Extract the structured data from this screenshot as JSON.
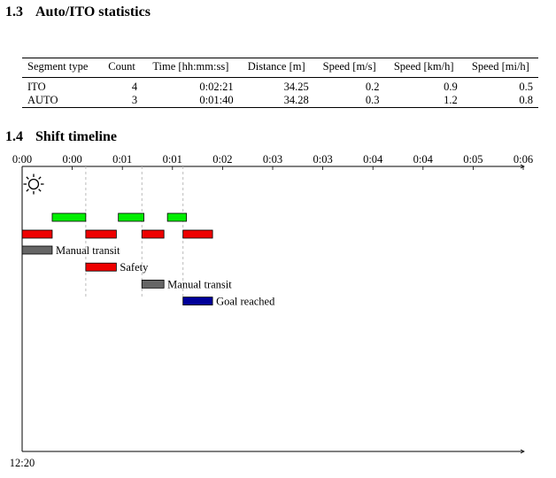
{
  "sections": {
    "stats": {
      "number": "1.3",
      "title": "Auto/ITO statistics"
    },
    "timeline": {
      "number": "1.4",
      "title": "Shift timeline"
    }
  },
  "stats_table": {
    "headers": [
      "Segment type",
      "Count",
      "Time [hh:mm:ss]",
      "Distance [m]",
      "Speed [m/s]",
      "Speed [km/h]",
      "Speed [mi/h]"
    ],
    "rows": [
      [
        "ITO",
        "4",
        "0:02:21",
        "34.25",
        "0.2",
        "0.9",
        "0.5"
      ],
      [
        "AUTO",
        "3",
        "0:01:40",
        "34.28",
        "0.3",
        "1.2",
        "0.8"
      ]
    ]
  },
  "timeline": {
    "icon": "sun-icon",
    "time_ticks": [
      "0:00",
      "0:00",
      "0:01",
      "0:01",
      "0:02",
      "0:03",
      "0:03",
      "0:04",
      "0:04",
      "0:05",
      "0:06"
    ],
    "start_label": "12:20",
    "colors": {
      "auto": "#00ee00",
      "ito": "#ee0000",
      "manual_transit": "#666666",
      "safety": "#ee0000",
      "goal_reached": "#000099",
      "divider": "#bbbbbb"
    },
    "auto_segments": [
      [
        0.6,
        1.27
      ],
      [
        1.92,
        2.43
      ],
      [
        2.9,
        3.28
      ]
    ],
    "ito_segments": [
      [
        0,
        0.6
      ],
      [
        1.27,
        1.88
      ],
      [
        2.39,
        2.83
      ],
      [
        3.21,
        3.8
      ]
    ],
    "dividers": [
      1.27,
      2.39,
      3.21
    ],
    "events": [
      {
        "label": "Manual transit",
        "type": "manual_transit",
        "start": 0,
        "end": 0.6
      },
      {
        "label": "Safety",
        "type": "safety",
        "start": 1.27,
        "end": 1.88
      },
      {
        "label": "Manual transit",
        "type": "manual_transit",
        "start": 2.39,
        "end": 2.83
      },
      {
        "label": "Goal reached",
        "type": "goal_reached",
        "start": 3.21,
        "end": 3.8
      }
    ]
  }
}
